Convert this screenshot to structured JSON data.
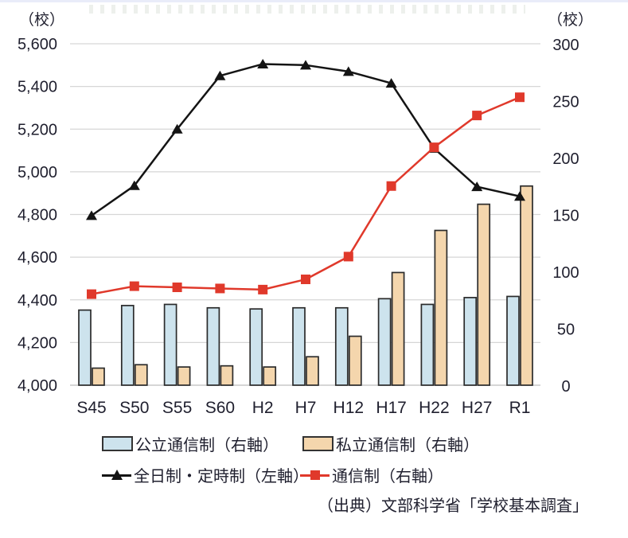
{
  "page": {
    "background": "#ffffff"
  },
  "chart_data": {
    "type": "bar+line combo",
    "title": "",
    "categories": [
      "S45",
      "S50",
      "S55",
      "S60",
      "H2",
      "H7",
      "H12",
      "H17",
      "H22",
      "H27",
      "R1"
    ],
    "series": [
      {
        "name": "公立通信制（右軸）",
        "type": "bar",
        "axis": "right",
        "color": "#cde3ed",
        "border": "#2b2b2b",
        "marker": "bar-swatch",
        "values": [
          66,
          70,
          71,
          68,
          67,
          68,
          68,
          76,
          71,
          77,
          78
        ]
      },
      {
        "name": "私立通信制（右軸）",
        "type": "bar",
        "axis": "right",
        "color": "#f4d6ad",
        "border": "#2b2b2b",
        "marker": "bar-swatch",
        "values": [
          15,
          18,
          16,
          17,
          16,
          25,
          43,
          99,
          136,
          159,
          175
        ]
      },
      {
        "name": "全日制・定時制（左軸）",
        "type": "line",
        "axis": "left",
        "color": "#141414",
        "marker": "triangle",
        "values": [
          4795,
          4935,
          5200,
          5450,
          5505,
          5500,
          5470,
          5415,
          5110,
          4930,
          4885
        ]
      },
      {
        "name": "通信制（右軸）",
        "type": "line",
        "axis": "right",
        "color": "#e0392b",
        "marker": "square",
        "values": [
          80,
          87,
          86,
          85,
          84,
          93,
          113,
          175,
          209,
          237,
          253
        ]
      }
    ],
    "left_axis": {
      "unit": "（校）",
      "min": 4000,
      "max": 5600,
      "tick_values": [
        5600,
        5400,
        5200,
        5000,
        4800,
        4600,
        4400,
        4200,
        4000
      ],
      "tick_labels": [
        "5,600",
        "5,400",
        "5,200",
        "5,000",
        "4,800",
        "4,600",
        "4,400",
        "4,200",
        "4,000"
      ]
    },
    "right_axis": {
      "unit": "（校）",
      "min": 0,
      "max": 300,
      "tick_values": [
        300,
        250,
        200,
        150,
        100,
        50,
        0
      ],
      "tick_labels": [
        "300",
        "250",
        "200",
        "150",
        "100",
        "50",
        "0"
      ]
    },
    "grid": true,
    "legend_position": "bottom",
    "source": "（出典）文部科学省「学校基本調査」",
    "colors": {
      "grid": "#d6d6d6",
      "axis_text": "#1f1f2e"
    }
  }
}
